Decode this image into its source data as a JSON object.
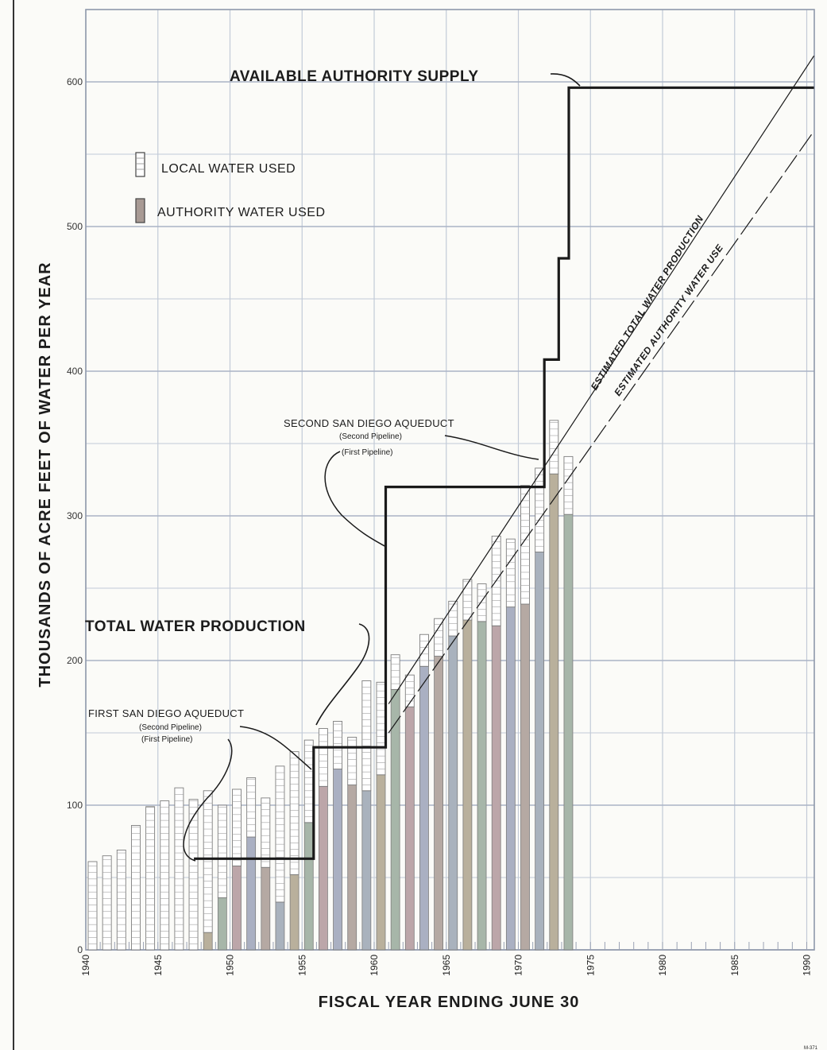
{
  "chart_data": {
    "type": "bar",
    "title": "",
    "xlabel": "FISCAL YEAR ENDING JUNE 30",
    "ylabel": "THOUSANDS OF ACRE FEET OF WATER PER YEAR",
    "xlim": [
      1940,
      1990
    ],
    "ylim": [
      0,
      650
    ],
    "x_ticks": [
      1940,
      1945,
      1950,
      1955,
      1960,
      1965,
      1970,
      1975,
      1980,
      1985,
      1990
    ],
    "y_ticks": [
      0,
      100,
      200,
      300,
      400,
      500,
      600
    ],
    "grid": true,
    "legend_position": "upper-left",
    "legend": [
      {
        "label": "LOCAL WATER USED",
        "color": "#ffffff"
      },
      {
        "label": "AUTHORITY WATER USED",
        "color": "#a89a94"
      }
    ],
    "colors": {
      "grid": "#c2cad8",
      "bar_outline": "#7d7d7d",
      "authority_fill": "#b3a6a0",
      "step_line": "#1a1a1a"
    },
    "years": [
      1940,
      1941,
      1942,
      1943,
      1944,
      1945,
      1946,
      1947,
      1948,
      1949,
      1950,
      1951,
      1952,
      1953,
      1954,
      1955,
      1956,
      1957,
      1958,
      1959,
      1960,
      1961,
      1962,
      1963,
      1964,
      1965,
      1966,
      1967,
      1968,
      1969,
      1970,
      1971,
      1972,
      1973
    ],
    "series": [
      {
        "name": "LOCAL WATER USED",
        "values": [
          61,
          65,
          69,
          86,
          99,
          103,
          112,
          104,
          98,
          64,
          53,
          41,
          48,
          94,
          85,
          57,
          40,
          33,
          33,
          76,
          64,
          24,
          22,
          22,
          26,
          24,
          28,
          26,
          62,
          47,
          82,
          58,
          37,
          40
        ]
      },
      {
        "name": "AUTHORITY WATER USED",
        "values": [
          0,
          0,
          0,
          0,
          0,
          0,
          0,
          0,
          12,
          36,
          58,
          78,
          57,
          33,
          52,
          88,
          113,
          125,
          114,
          110,
          121,
          180,
          168,
          196,
          203,
          217,
          228,
          227,
          224,
          237,
          239,
          275,
          329,
          301
        ]
      }
    ],
    "total_water_production": [
      61,
      65,
      69,
      86,
      99,
      103,
      112,
      104,
      110,
      100,
      111,
      119,
      105,
      127,
      137,
      145,
      153,
      158,
      147,
      186,
      185,
      204,
      190,
      218,
      229,
      241,
      256,
      253,
      286,
      284,
      321,
      333,
      366,
      340
    ],
    "available_authority_supply": {
      "name": "AVAILABLE AUTHORITY SUPPLY",
      "x": [
        1947.5,
        1955.8,
        1955.8,
        1960.8,
        1960.8,
        1971.8,
        1971.8,
        1972.8,
        1972.8,
        1973.5,
        1973.5,
        1990.5
      ],
      "y": [
        63,
        63,
        140,
        140,
        320,
        320,
        408,
        408,
        478,
        478,
        596,
        596
      ]
    },
    "estimated_total_water_production": {
      "name": "ESTIMATED TOTAL WATER PRODUCTION",
      "x": [
        1961,
        1990.5
      ],
      "y": [
        170,
        618
      ]
    },
    "estimated_authority_water_use": {
      "name": "ESTIMATED AUTHORITY WATER USE",
      "x": [
        1961,
        1990.5
      ],
      "y": [
        150,
        566
      ]
    },
    "annotations": {
      "available_authority_supply": "AVAILABLE AUTHORITY SUPPLY",
      "total_water_production": "TOTAL WATER PRODUCTION",
      "first_aqueduct": "FIRST SAN DIEGO AQUEDUCT",
      "first_aqueduct_second": "(Second Pipeline)",
      "first_aqueduct_first": "(First Pipeline)",
      "second_aqueduct": "SECOND SAN DIEGO AQUEDUCT",
      "second_aqueduct_second": "(Second Pipeline)",
      "second_aqueduct_first": "(First Pipeline)",
      "estimated_total": "ESTIMATED TOTAL WATER PRODUCTION",
      "estimated_authority": "ESTIMATED AUTHORITY WATER USE"
    }
  }
}
